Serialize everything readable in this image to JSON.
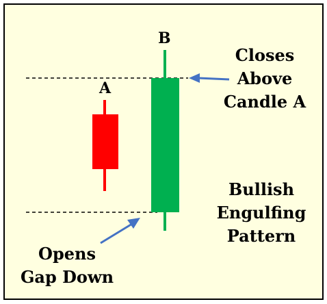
{
  "candle_a": {
    "label": "A",
    "color": "#ff0000"
  },
  "candle_b": {
    "label": "B",
    "color": "#00b050"
  },
  "callout_close": {
    "lines": [
      "Closes",
      "Above",
      "Candle A"
    ]
  },
  "callout_open": {
    "lines": [
      "Opens",
      "Gap Down"
    ]
  },
  "pattern_name": {
    "lines": [
      "Bullish",
      "Engulfing",
      "Pattern"
    ]
  },
  "arrow_color": "#4472c4",
  "background_color": "#ffffe0"
}
